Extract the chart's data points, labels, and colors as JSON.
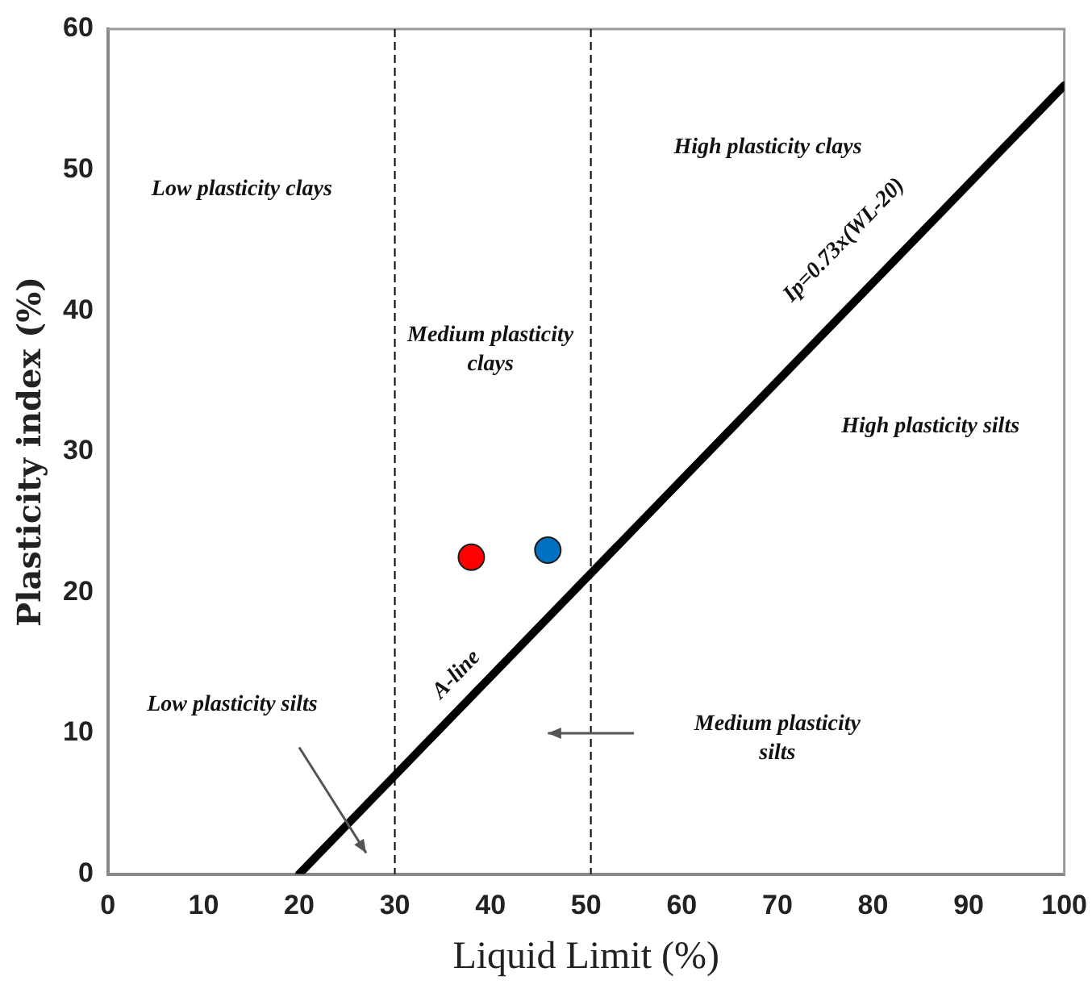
{
  "chart_data": {
    "type": "scatter",
    "xlabel": "Liquid Limit (%)",
    "ylabel": "Plasticity index (%)",
    "xlim": [
      0,
      100
    ],
    "xticks": [
      0,
      10,
      20,
      30,
      40,
      50,
      60,
      70,
      80,
      90,
      100
    ],
    "ylim": [
      0,
      60
    ],
    "yticks": [
      0,
      10,
      20,
      30,
      40,
      50,
      60
    ],
    "grid": false,
    "legend": false,
    "series": [
      {
        "type": "line",
        "name": "A-line",
        "color": "#000000",
        "x": [
          20,
          100
        ],
        "values": [
          0,
          56
        ]
      },
      {
        "color": "#ff0000",
        "x": [
          38
        ],
        "values": [
          22.5
        ]
      },
      {
        "color": "#0070c0",
        "x": [
          46
        ],
        "values": [
          23
        ]
      }
    ],
    "ref_lines": [
      {
        "axis": "x",
        "value": 30,
        "line_style": "dashed"
      },
      {
        "axis": "x",
        "value": 50.5,
        "line_style": "dashed"
      }
    ],
    "annotations": [
      "Low plasticity clays",
      "Medium plasticity clays",
      "High plasticity clays",
      "Ip=0.73x(WL-20)",
      "High plasticity silts",
      "Low plasticity silts",
      "Medium plasticity silts"
    ]
  }
}
